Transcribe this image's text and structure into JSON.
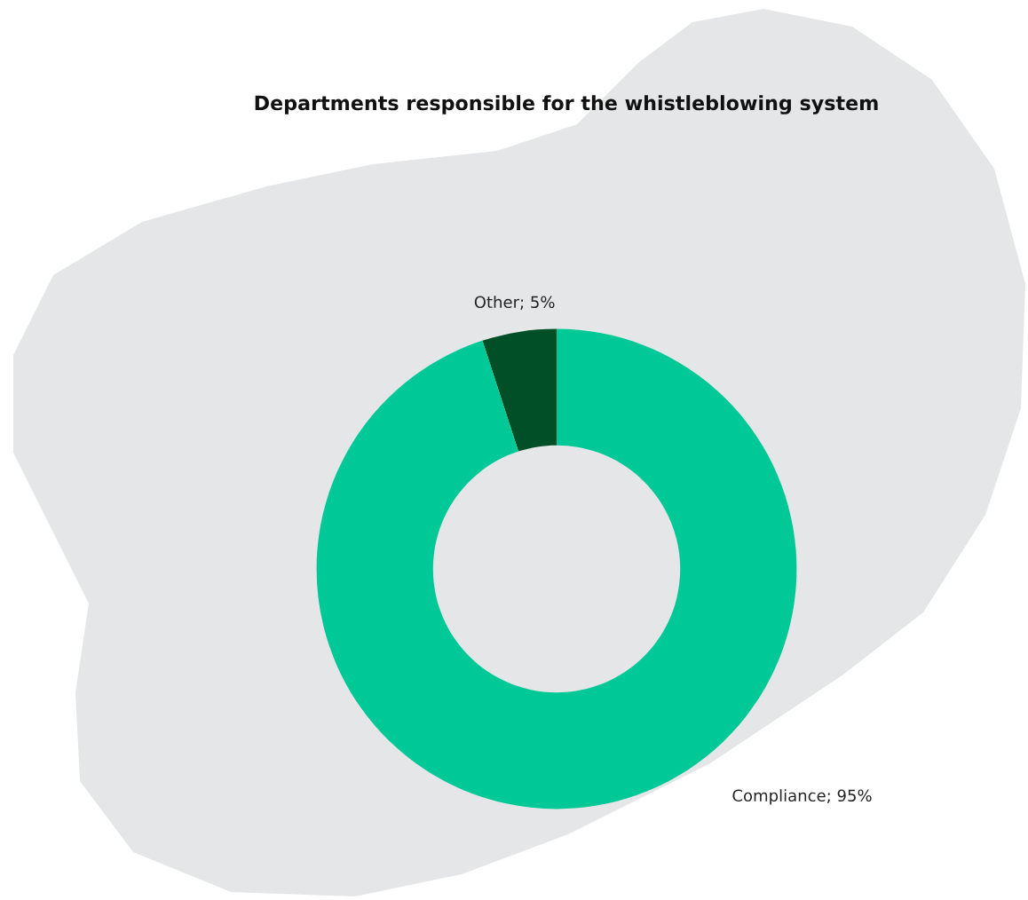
{
  "chart_data": {
    "type": "donut",
    "title": "Departments responsible for the whistleblowing system",
    "categories": [
      "Other",
      "Compliance"
    ],
    "values": [
      5,
      95
    ],
    "colors": [
      "#004f26",
      "#00c896"
    ],
    "value_labels": [
      "5%",
      "95%"
    ]
  }
}
